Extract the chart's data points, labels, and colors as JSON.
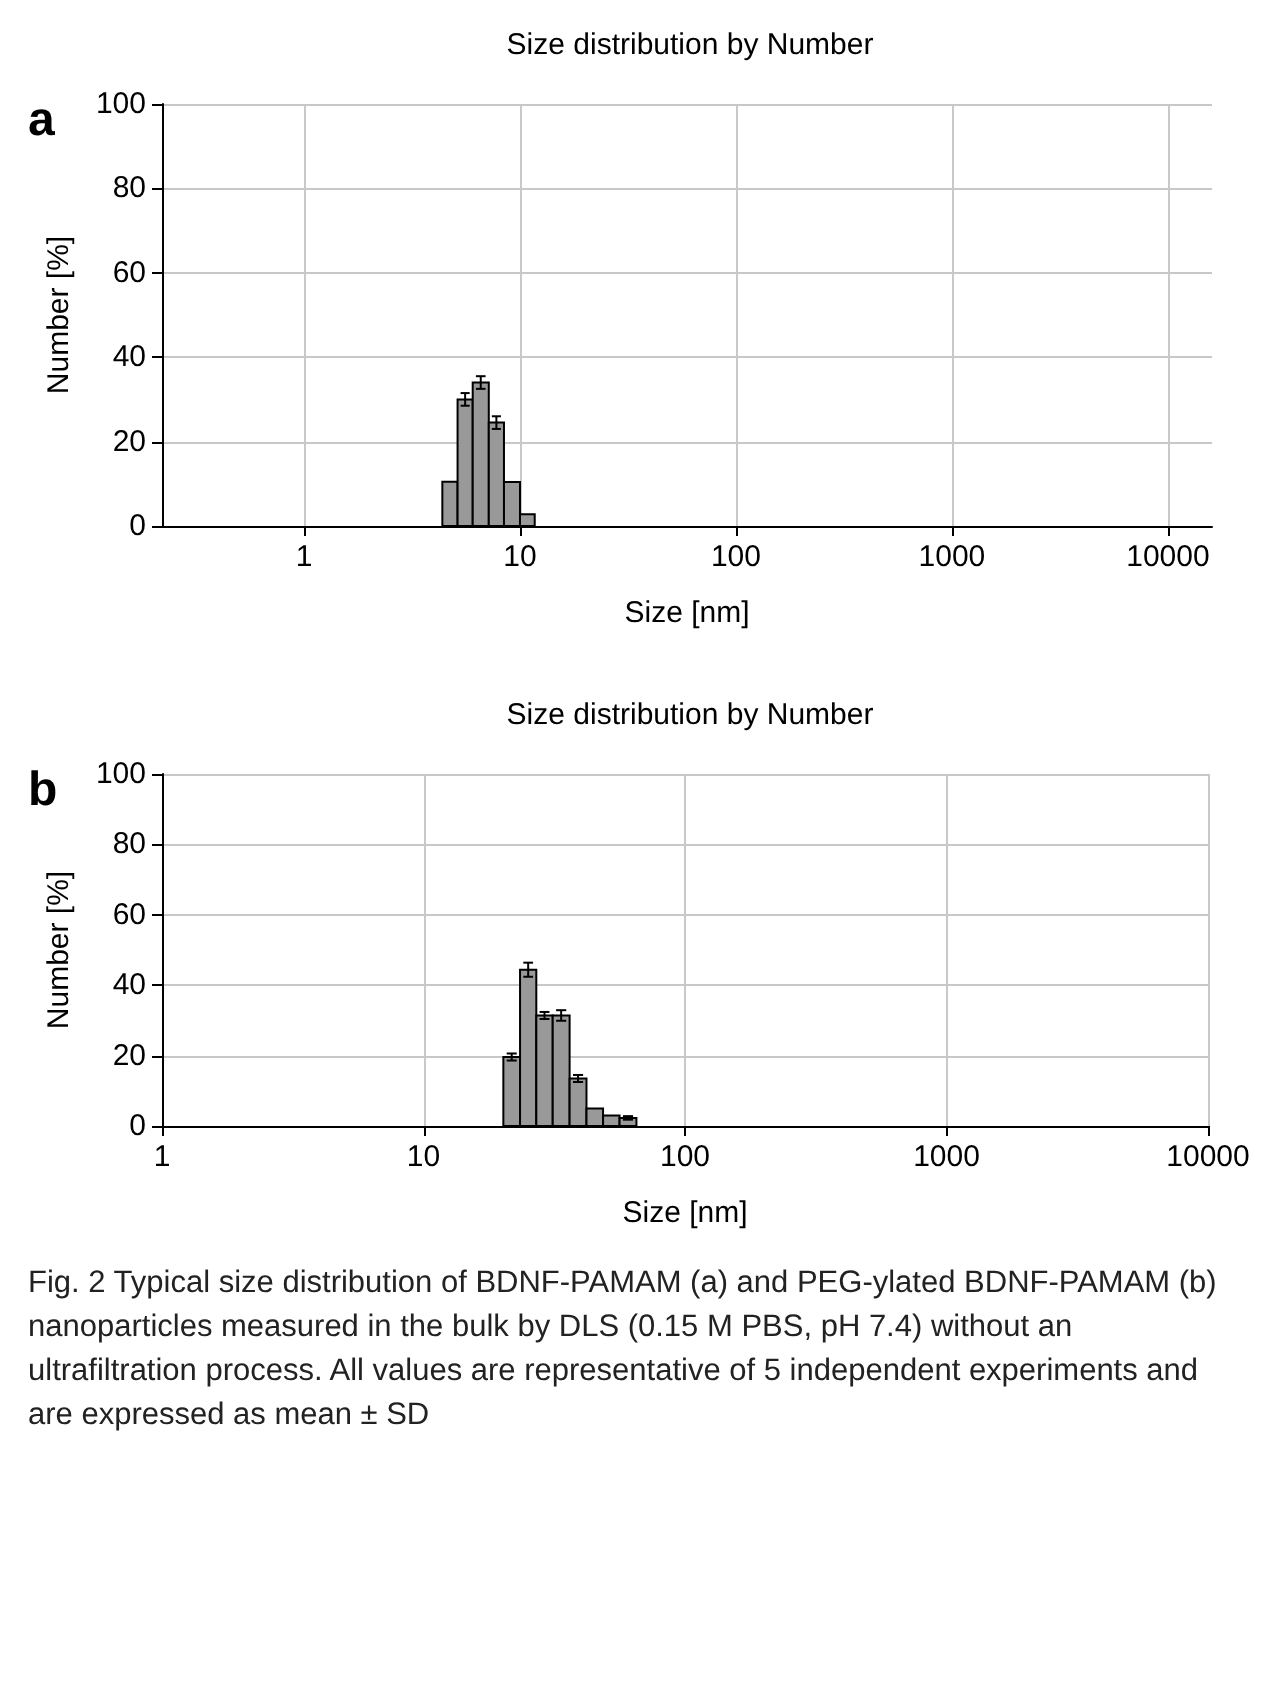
{
  "chart_data": [
    {
      "type": "histogram",
      "title": "Size distribution by Number",
      "xlabel": "Size [nm]",
      "ylabel": "Number [%]",
      "annotations": [
        "a"
      ],
      "bins": [
        4.37,
        5.14,
        6.04,
        7.17,
        8.43,
        10,
        11.7
      ],
      "values": [
        10.5,
        30,
        34,
        24.5,
        10.4,
        2.8
      ],
      "errors": [
        null,
        1.5,
        1.5,
        1.5,
        null,
        null
      ],
      "color": "#999999",
      "log": "x",
      "xlim": [
        0.22,
        16000
      ],
      "xticks": [
        1,
        10,
        100,
        1000,
        10000
      ],
      "ylim": [
        0,
        100
      ],
      "yticks": [
        0,
        20,
        40,
        60,
        80,
        100
      ],
      "grid": true
    },
    {
      "type": "histogram",
      "title": "Size distribution by Number",
      "xlabel": "Size [nm]",
      "ylabel": "Number [%]",
      "annotations": [
        "b",
        "Fig. 2  Typical size distribution of BDNF-PAMAM (a) and PEG-ylated BDNF-PAMAM (b) nanoparticles measured in the bulk by DLS (0.15 M PBS, pH 7.4) without an ultrafiltration process. All values are representative of 5 independent experiments and are expressed as mean ± SD"
      ],
      "bins": [
        20.2,
        23.4,
        27.0,
        31.2,
        36.2,
        42.0,
        48.6,
        56.2,
        65.2
      ],
      "values": [
        19.6,
        44.4,
        31.4,
        31.4,
        13.5,
        5,
        3,
        2.3
      ],
      "errors": [
        1,
        2,
        1,
        1.5,
        1,
        null,
        null,
        0.5
      ],
      "color": "#999999",
      "log": "x",
      "xlim": [
        1,
        10000
      ],
      "xticks": [
        1,
        10,
        100,
        1000,
        10000
      ],
      "ylim": [
        0,
        100
      ],
      "yticks": [
        0,
        20,
        40,
        60,
        80,
        100
      ],
      "grid": true
    }
  ]
}
